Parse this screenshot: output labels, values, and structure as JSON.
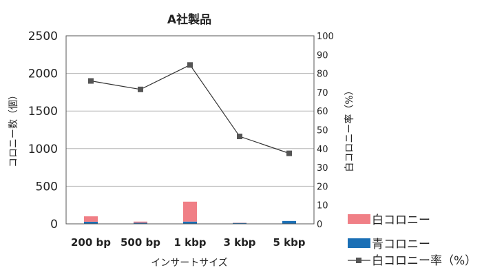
{
  "chart_data": {
    "type": "bar",
    "title": "A社製品",
    "xlabel": "インサートサイズ",
    "ylabel": "コロニー数（個）",
    "y2label": "白コロニー率（%）",
    "categories": [
      "200 bp",
      "500 bp",
      "1 kbp",
      "3 kbp",
      "5 kbp"
    ],
    "ylim": [
      0,
      2500
    ],
    "y2lim": [
      0,
      100
    ],
    "yticks": [
      "0",
      "500",
      "1000",
      "1500",
      "2000",
      "2500"
    ],
    "y2ticks": [
      "0",
      "10",
      "20",
      "30",
      "40",
      "50",
      "60",
      "70",
      "80",
      "90",
      "100"
    ],
    "stacked": true,
    "series": [
      {
        "name": "青コロニー",
        "type": "bar",
        "axis": "left",
        "color": "#1a6fb5",
        "values": [
          28,
          15,
          30,
          12,
          38
        ]
      },
      {
        "name": "白コロニー",
        "type": "bar",
        "axis": "left",
        "color": "#f07f86",
        "values": [
          72,
          15,
          265,
          3,
          0
        ]
      },
      {
        "name": "白コロニー率（%）",
        "type": "line",
        "axis": "right",
        "color": "#333333",
        "marker": "square",
        "values": [
          76,
          71.5,
          84.5,
          46.5,
          37.5
        ]
      }
    ],
    "legend": {
      "position": "bottom-right",
      "entries": [
        "白コロニー",
        "青コロニー",
        "白コロニー率（%）"
      ]
    },
    "grid": true
  }
}
